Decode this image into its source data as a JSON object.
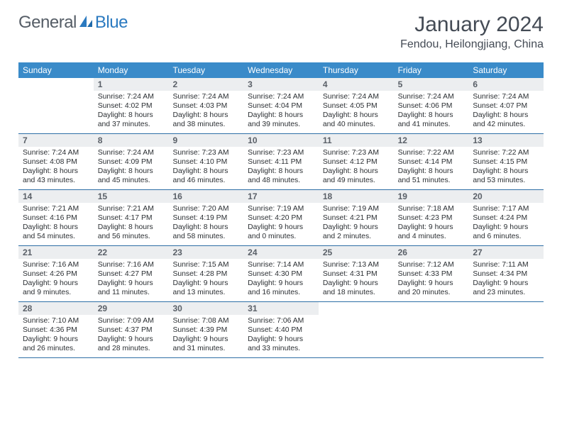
{
  "logo": {
    "word1": "General",
    "word2": "Blue",
    "primary_color": "#2b7ac0",
    "text_color": "#555d66"
  },
  "title": {
    "month": "January 2024",
    "location": "Fendou, Heilongjiang, China"
  },
  "colors": {
    "header_bg": "#3a8bc9",
    "header_text": "#ffffff",
    "daynum_bg": "#eceef0",
    "week_divider": "#2e6fa6",
    "body_text": "#2b2f33"
  },
  "font": {
    "family": "Arial",
    "dayhead_size": 12,
    "detail_size": 10.4,
    "title_size": 30
  },
  "day_headers": [
    "Sunday",
    "Monday",
    "Tuesday",
    "Wednesday",
    "Thursday",
    "Friday",
    "Saturday"
  ],
  "weeks": [
    [
      {
        "empty": true
      },
      {
        "day": "1",
        "sunrise": "Sunrise: 7:24 AM",
        "sunset": "Sunset: 4:02 PM",
        "daylight": "Daylight: 8 hours and 37 minutes."
      },
      {
        "day": "2",
        "sunrise": "Sunrise: 7:24 AM",
        "sunset": "Sunset: 4:03 PM",
        "daylight": "Daylight: 8 hours and 38 minutes."
      },
      {
        "day": "3",
        "sunrise": "Sunrise: 7:24 AM",
        "sunset": "Sunset: 4:04 PM",
        "daylight": "Daylight: 8 hours and 39 minutes."
      },
      {
        "day": "4",
        "sunrise": "Sunrise: 7:24 AM",
        "sunset": "Sunset: 4:05 PM",
        "daylight": "Daylight: 8 hours and 40 minutes."
      },
      {
        "day": "5",
        "sunrise": "Sunrise: 7:24 AM",
        "sunset": "Sunset: 4:06 PM",
        "daylight": "Daylight: 8 hours and 41 minutes."
      },
      {
        "day": "6",
        "sunrise": "Sunrise: 7:24 AM",
        "sunset": "Sunset: 4:07 PM",
        "daylight": "Daylight: 8 hours and 42 minutes."
      }
    ],
    [
      {
        "day": "7",
        "sunrise": "Sunrise: 7:24 AM",
        "sunset": "Sunset: 4:08 PM",
        "daylight": "Daylight: 8 hours and 43 minutes."
      },
      {
        "day": "8",
        "sunrise": "Sunrise: 7:24 AM",
        "sunset": "Sunset: 4:09 PM",
        "daylight": "Daylight: 8 hours and 45 minutes."
      },
      {
        "day": "9",
        "sunrise": "Sunrise: 7:23 AM",
        "sunset": "Sunset: 4:10 PM",
        "daylight": "Daylight: 8 hours and 46 minutes."
      },
      {
        "day": "10",
        "sunrise": "Sunrise: 7:23 AM",
        "sunset": "Sunset: 4:11 PM",
        "daylight": "Daylight: 8 hours and 48 minutes."
      },
      {
        "day": "11",
        "sunrise": "Sunrise: 7:23 AM",
        "sunset": "Sunset: 4:12 PM",
        "daylight": "Daylight: 8 hours and 49 minutes."
      },
      {
        "day": "12",
        "sunrise": "Sunrise: 7:22 AM",
        "sunset": "Sunset: 4:14 PM",
        "daylight": "Daylight: 8 hours and 51 minutes."
      },
      {
        "day": "13",
        "sunrise": "Sunrise: 7:22 AM",
        "sunset": "Sunset: 4:15 PM",
        "daylight": "Daylight: 8 hours and 53 minutes."
      }
    ],
    [
      {
        "day": "14",
        "sunrise": "Sunrise: 7:21 AM",
        "sunset": "Sunset: 4:16 PM",
        "daylight": "Daylight: 8 hours and 54 minutes."
      },
      {
        "day": "15",
        "sunrise": "Sunrise: 7:21 AM",
        "sunset": "Sunset: 4:17 PM",
        "daylight": "Daylight: 8 hours and 56 minutes."
      },
      {
        "day": "16",
        "sunrise": "Sunrise: 7:20 AM",
        "sunset": "Sunset: 4:19 PM",
        "daylight": "Daylight: 8 hours and 58 minutes."
      },
      {
        "day": "17",
        "sunrise": "Sunrise: 7:19 AM",
        "sunset": "Sunset: 4:20 PM",
        "daylight": "Daylight: 9 hours and 0 minutes."
      },
      {
        "day": "18",
        "sunrise": "Sunrise: 7:19 AM",
        "sunset": "Sunset: 4:21 PM",
        "daylight": "Daylight: 9 hours and 2 minutes."
      },
      {
        "day": "19",
        "sunrise": "Sunrise: 7:18 AM",
        "sunset": "Sunset: 4:23 PM",
        "daylight": "Daylight: 9 hours and 4 minutes."
      },
      {
        "day": "20",
        "sunrise": "Sunrise: 7:17 AM",
        "sunset": "Sunset: 4:24 PM",
        "daylight": "Daylight: 9 hours and 6 minutes."
      }
    ],
    [
      {
        "day": "21",
        "sunrise": "Sunrise: 7:16 AM",
        "sunset": "Sunset: 4:26 PM",
        "daylight": "Daylight: 9 hours and 9 minutes."
      },
      {
        "day": "22",
        "sunrise": "Sunrise: 7:16 AM",
        "sunset": "Sunset: 4:27 PM",
        "daylight": "Daylight: 9 hours and 11 minutes."
      },
      {
        "day": "23",
        "sunrise": "Sunrise: 7:15 AM",
        "sunset": "Sunset: 4:28 PM",
        "daylight": "Daylight: 9 hours and 13 minutes."
      },
      {
        "day": "24",
        "sunrise": "Sunrise: 7:14 AM",
        "sunset": "Sunset: 4:30 PM",
        "daylight": "Daylight: 9 hours and 16 minutes."
      },
      {
        "day": "25",
        "sunrise": "Sunrise: 7:13 AM",
        "sunset": "Sunset: 4:31 PM",
        "daylight": "Daylight: 9 hours and 18 minutes."
      },
      {
        "day": "26",
        "sunrise": "Sunrise: 7:12 AM",
        "sunset": "Sunset: 4:33 PM",
        "daylight": "Daylight: 9 hours and 20 minutes."
      },
      {
        "day": "27",
        "sunrise": "Sunrise: 7:11 AM",
        "sunset": "Sunset: 4:34 PM",
        "daylight": "Daylight: 9 hours and 23 minutes."
      }
    ],
    [
      {
        "day": "28",
        "sunrise": "Sunrise: 7:10 AM",
        "sunset": "Sunset: 4:36 PM",
        "daylight": "Daylight: 9 hours and 26 minutes."
      },
      {
        "day": "29",
        "sunrise": "Sunrise: 7:09 AM",
        "sunset": "Sunset: 4:37 PM",
        "daylight": "Daylight: 9 hours and 28 minutes."
      },
      {
        "day": "30",
        "sunrise": "Sunrise: 7:08 AM",
        "sunset": "Sunset: 4:39 PM",
        "daylight": "Daylight: 9 hours and 31 minutes."
      },
      {
        "day": "31",
        "sunrise": "Sunrise: 7:06 AM",
        "sunset": "Sunset: 4:40 PM",
        "daylight": "Daylight: 9 hours and 33 minutes."
      },
      {
        "empty": true
      },
      {
        "empty": true
      },
      {
        "empty": true
      }
    ]
  ]
}
